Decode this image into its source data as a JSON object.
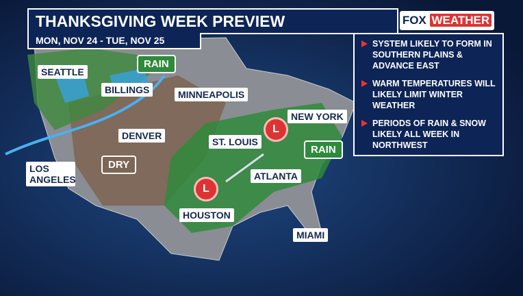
{
  "header": {
    "title": "THANKSGIVING WEEK PREVIEW",
    "subtitle": "MON, NOV 24 - TUE, NOV 25"
  },
  "logo": {
    "brand": "FOX",
    "product": "WEATHER"
  },
  "notes": [
    "SYSTEM LIKELY TO FORM IN SOUTHERN PLAINS & ADVANCE EAST",
    "WARM TEMPERATURES WILL LIKELY LIMIT WINTER WEATHER",
    "PERIODS OF RAIN & SNOW LIKELY ALL WEEK IN NORTHWEST"
  ],
  "cities": [
    "SEATTLE",
    "BILLINGS",
    "MINNEAPOLIS",
    "DENVER",
    "ST. LOUIS",
    "NEW YORK",
    "LOS ANGELES",
    "ATLANTA",
    "HOUSTON",
    "MIAMI"
  ],
  "regions": [
    "RAIN",
    "DRY",
    "RAIN"
  ],
  "lows": [
    "L",
    "L"
  ]
}
